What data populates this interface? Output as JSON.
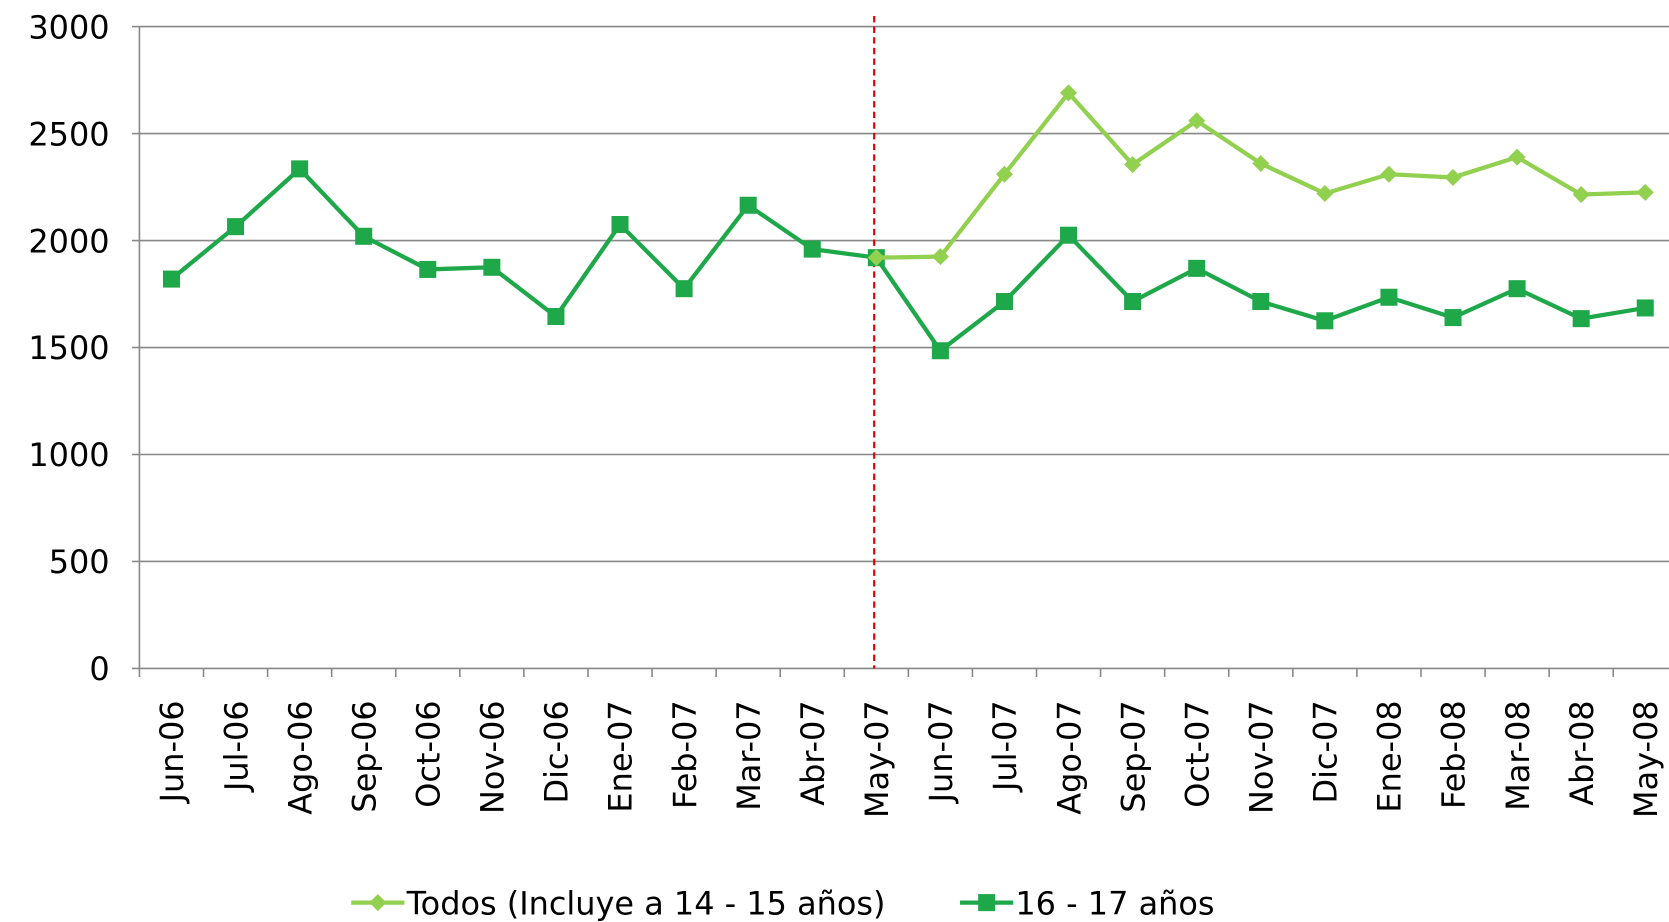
{
  "chart_data": {
    "type": "line",
    "categories": [
      "Jun-06",
      "Jul-06",
      "Ago-06",
      "Sep-06",
      "Oct-06",
      "Nov-06",
      "Dic-06",
      "Ene-07",
      "Feb-07",
      "Mar-07",
      "Abr-07",
      "May-07",
      "Jun-07",
      "Jul-07",
      "Ago-07",
      "Sep-07",
      "Oct-07",
      "Nov-07",
      "Dic-07",
      "Ene-08",
      "Feb-08",
      "Mar-08",
      "Abr-08",
      "May-08"
    ],
    "series": [
      {
        "name": "Todos (Incluye a 14 - 15 años)",
        "color": "#92d050",
        "marker": "diamond",
        "values": [
          null,
          null,
          null,
          null,
          null,
          null,
          null,
          null,
          null,
          null,
          null,
          1920,
          1925,
          2310,
          2690,
          2355,
          2560,
          2360,
          2220,
          2310,
          2295,
          2390,
          2215,
          2225
        ]
      },
      {
        "name": "16 - 17 años",
        "color": "#1fa84a",
        "marker": "square",
        "values": [
          1820,
          2065,
          2335,
          2020,
          1865,
          1875,
          1645,
          2075,
          1775,
          2165,
          1960,
          1920,
          1485,
          1715,
          2025,
          1715,
          1870,
          1715,
          1625,
          1735,
          1640,
          1775,
          1635,
          1685
        ]
      }
    ],
    "ylim": [
      0,
      3000
    ],
    "yticks": [
      0,
      500,
      1000,
      1500,
      2000,
      2500,
      3000
    ],
    "grid": true,
    "vertical_line": {
      "category": "May-07",
      "color": "#e00000"
    },
    "legend": "bottom"
  }
}
